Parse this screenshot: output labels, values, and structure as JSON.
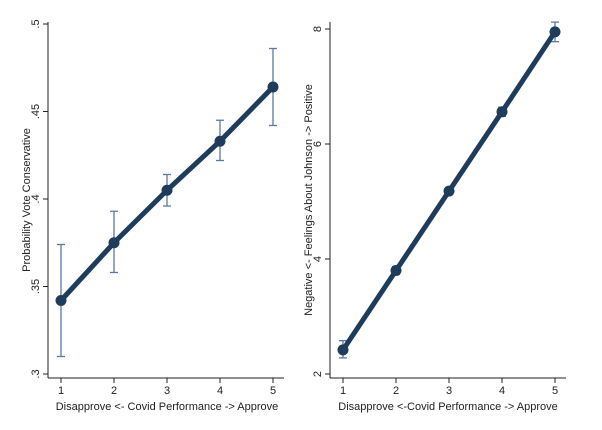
{
  "chart_data": [
    {
      "type": "line",
      "title": "",
      "xlabel": "Disapprove <- Covid Performance -> Approve",
      "ylabel": "Probability Vote Conservative",
      "x": [
        1,
        2,
        3,
        4,
        5
      ],
      "xticks": [
        "1",
        "2",
        "3",
        "4",
        "5"
      ],
      "ylim": [
        0.3,
        0.5
      ],
      "yticks": [
        ".3",
        ".35",
        ".4",
        ".45",
        ".5"
      ],
      "series": [
        {
          "values": [
            0.342,
            0.375,
            0.405,
            0.433,
            0.464
          ],
          "ci_low": [
            0.31,
            0.358,
            0.396,
            0.422,
            0.442
          ],
          "ci_high": [
            0.374,
            0.393,
            0.414,
            0.445,
            0.486
          ]
        }
      ],
      "grid": false,
      "colors": {
        "line": "#1f3c5b",
        "errorbar": "#5b7aa3"
      }
    },
    {
      "type": "line",
      "title": "",
      "xlabel": "Disapprove <-Covid Performance -> Approve",
      "ylabel": "Negative <- Feelings About Johnson -> Positive",
      "x": [
        1,
        2,
        3,
        4,
        5
      ],
      "xticks": [
        "1",
        "2",
        "3",
        "4",
        "5"
      ],
      "ylim": [
        2,
        8.4
      ],
      "yticks": [
        "2",
        "4",
        "6",
        "8"
      ],
      "series": [
        {
          "values": [
            2.42,
            3.8,
            5.18,
            6.56,
            7.95
          ],
          "ci_low": [
            2.28,
            3.73,
            5.12,
            6.48,
            7.78
          ],
          "ci_high": [
            2.58,
            3.87,
            5.24,
            6.64,
            8.12
          ]
        }
      ],
      "grid": false,
      "colors": {
        "line": "#1f3c5b",
        "errorbar": "#5b7aa3"
      }
    }
  ]
}
